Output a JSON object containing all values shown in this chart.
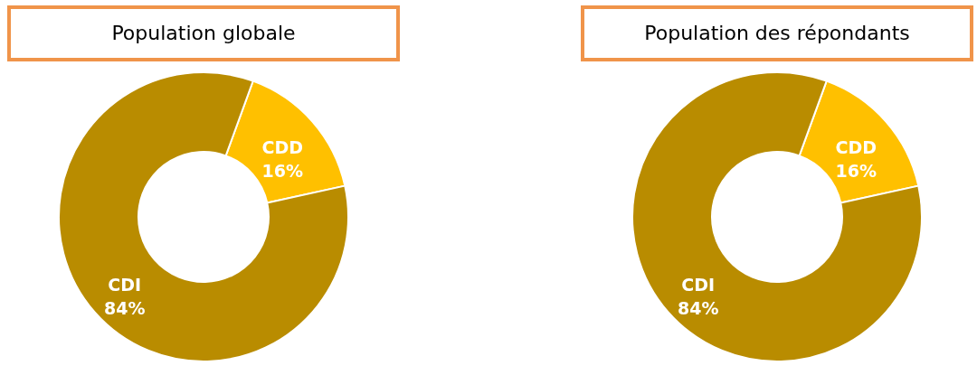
{
  "chart_data": [
    {
      "type": "donut",
      "title": "Population globale",
      "categories": [
        "CDD",
        "CDI"
      ],
      "values": [
        16,
        84
      ],
      "colors": [
        "#ffc000",
        "#b98c00"
      ],
      "value_labels": [
        "16%",
        "84%"
      ]
    },
    {
      "type": "donut",
      "title": "Population des répondants",
      "categories": [
        "CDD",
        "CDI"
      ],
      "values": [
        16,
        84
      ],
      "colors": [
        "#ffc000",
        "#b98c00"
      ],
      "value_labels": [
        "16%",
        "84%"
      ]
    }
  ]
}
